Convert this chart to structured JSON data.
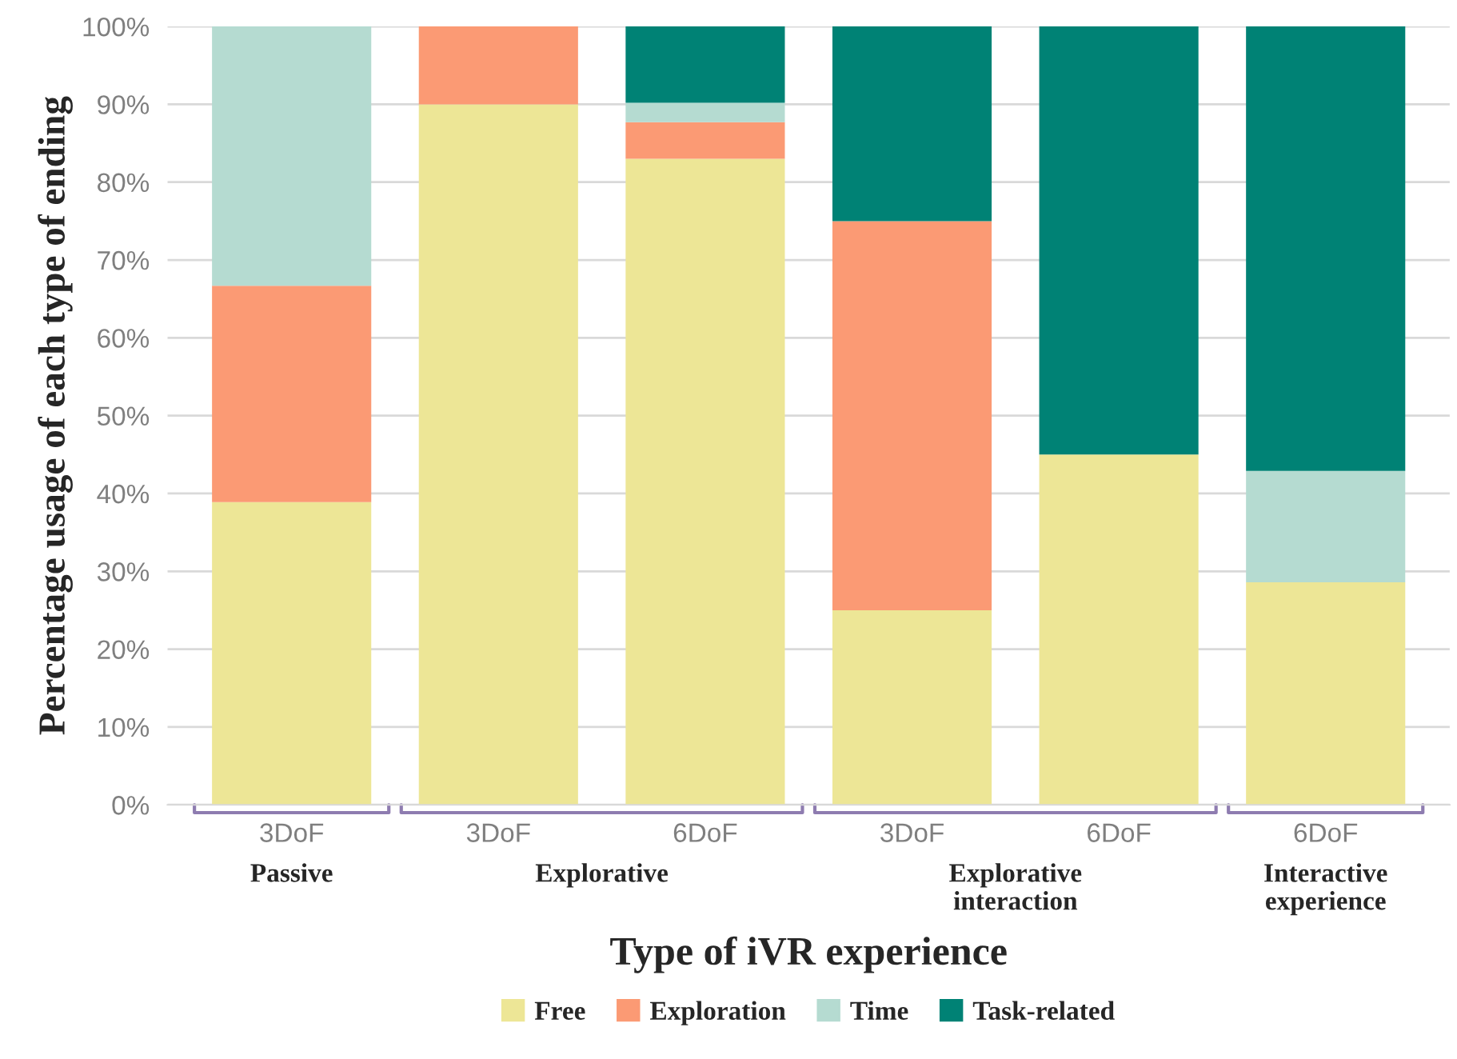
{
  "chart_data": {
    "type": "bar",
    "stacked": true,
    "categories": [
      "3DoF",
      "3DoF",
      "6DoF",
      "3DoF",
      "6DoF",
      "6DoF"
    ],
    "series": [
      {
        "name": "Free",
        "color": "#ede696",
        "values": [
          38.9,
          90,
          83,
          25,
          45,
          28.6
        ]
      },
      {
        "name": "Exploration",
        "color": "#fb9a74",
        "values": [
          27.8,
          10,
          4.7,
          50,
          null,
          null
        ]
      },
      {
        "name": "Time",
        "color": "#b5dbd1",
        "values": [
          33.3,
          null,
          2.5,
          null,
          null,
          14.3
        ]
      },
      {
        "name": "Task-related",
        "color": "#008275",
        "values": [
          null,
          null,
          9.8,
          25,
          55,
          57.1
        ]
      }
    ],
    "ylabel": "Percentage usage of each type of ending",
    "xlabel": "Type of iVR experience",
    "annotations": [
      "Passive",
      "Explorative",
      "Explorative\ninteraction",
      "Interactive\nexperience"
    ],
    "ylim": [
      0,
      100
    ],
    "yticks": [
      {
        "value": 0,
        "label": "0%"
      },
      {
        "value": 10,
        "label": "10%"
      },
      {
        "value": 20,
        "label": "20%"
      },
      {
        "value": 30,
        "label": "30%"
      },
      {
        "value": 40,
        "label": "40%"
      },
      {
        "value": 50,
        "label": "50%"
      },
      {
        "value": 60,
        "label": "60%"
      },
      {
        "value": 70,
        "label": "70%"
      },
      {
        "value": 80,
        "label": "80%"
      },
      {
        "value": 90,
        "label": "90%"
      },
      {
        "value": 100,
        "label": "100%"
      }
    ],
    "grid": "y",
    "legend": "bottom"
  }
}
